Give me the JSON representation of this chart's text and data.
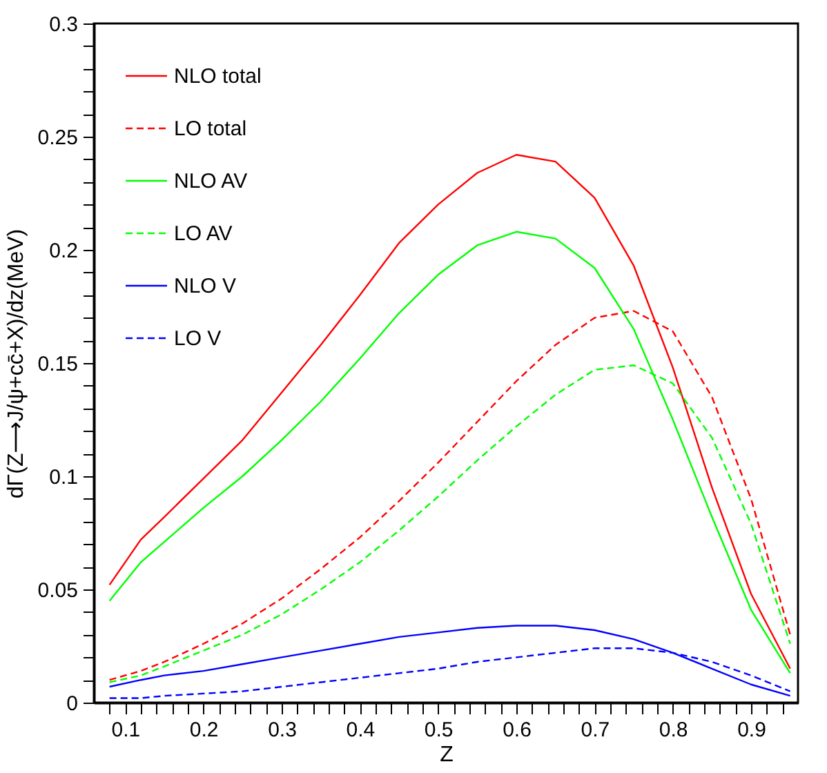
{
  "chart_data": {
    "type": "line",
    "xlabel": "Z",
    "ylabel": "dΓ(Z⟶J/ψ+cc̄+X)/dz(MeV)",
    "legend": "top left",
    "grid": false,
    "marker": "none",
    "x": [
      0.08,
      0.12,
      0.15,
      0.2,
      0.25,
      0.3,
      0.35,
      0.4,
      0.45,
      0.5,
      0.55,
      0.6,
      0.65,
      0.7,
      0.75,
      0.8,
      0.85,
      0.9,
      0.95
    ],
    "xlim": [
      0.06,
      0.96
    ],
    "ylim": [
      0,
      0.3
    ],
    "xticks": [
      {
        "value": 0.08,
        "label": null
      },
      {
        "value": 0.1,
        "label": "0.1"
      },
      {
        "value": 0.12,
        "label": null
      },
      {
        "value": 0.14,
        "label": null
      },
      {
        "value": 0.16,
        "label": null
      },
      {
        "value": 0.18,
        "label": null
      },
      {
        "value": 0.2,
        "label": "0.2"
      },
      {
        "value": 0.22,
        "label": null
      },
      {
        "value": 0.24,
        "label": null
      },
      {
        "value": 0.26,
        "label": null
      },
      {
        "value": 0.28,
        "label": null
      },
      {
        "value": 0.3,
        "label": "0.3"
      },
      {
        "value": 0.32,
        "label": null
      },
      {
        "value": 0.34,
        "label": null
      },
      {
        "value": 0.36,
        "label": null
      },
      {
        "value": 0.38,
        "label": null
      },
      {
        "value": 0.4,
        "label": "0.4"
      },
      {
        "value": 0.42,
        "label": null
      },
      {
        "value": 0.44,
        "label": null
      },
      {
        "value": 0.46,
        "label": null
      },
      {
        "value": 0.48,
        "label": null
      },
      {
        "value": 0.5,
        "label": "0.5"
      },
      {
        "value": 0.52,
        "label": null
      },
      {
        "value": 0.54,
        "label": null
      },
      {
        "value": 0.56,
        "label": null
      },
      {
        "value": 0.58,
        "label": null
      },
      {
        "value": 0.6,
        "label": "0.6"
      },
      {
        "value": 0.62,
        "label": null
      },
      {
        "value": 0.64,
        "label": null
      },
      {
        "value": 0.66,
        "label": null
      },
      {
        "value": 0.68,
        "label": null
      },
      {
        "value": 0.7,
        "label": "0.7"
      },
      {
        "value": 0.72,
        "label": null
      },
      {
        "value": 0.74,
        "label": null
      },
      {
        "value": 0.76,
        "label": null
      },
      {
        "value": 0.78,
        "label": null
      },
      {
        "value": 0.8,
        "label": "0.8"
      },
      {
        "value": 0.82,
        "label": null
      },
      {
        "value": 0.84,
        "label": null
      },
      {
        "value": 0.86,
        "label": null
      },
      {
        "value": 0.88,
        "label": null
      },
      {
        "value": 0.9,
        "label": "0.9"
      },
      {
        "value": 0.92,
        "label": null
      },
      {
        "value": 0.94,
        "label": null
      }
    ],
    "yticks": [
      0,
      {
        "value": 0.01,
        "label": null
      },
      {
        "value": 0.02,
        "label": null
      },
      {
        "value": 0.03,
        "label": null
      },
      {
        "value": 0.04,
        "label": null
      },
      0.05,
      {
        "value": 0.06,
        "label": null
      },
      {
        "value": 0.07,
        "label": null
      },
      {
        "value": 0.08,
        "label": null
      },
      {
        "value": 0.09,
        "label": null
      },
      0.1,
      {
        "value": 0.11,
        "label": null
      },
      {
        "value": 0.12,
        "label": null
      },
      {
        "value": 0.13,
        "label": null
      },
      {
        "value": 0.14,
        "label": null
      },
      0.15,
      {
        "value": 0.16,
        "label": null
      },
      {
        "value": 0.17,
        "label": null
      },
      {
        "value": 0.18,
        "label": null
      },
      {
        "value": 0.19,
        "label": null
      },
      0.2,
      {
        "value": 0.21,
        "label": null
      },
      {
        "value": 0.22,
        "label": null
      },
      {
        "value": 0.23,
        "label": null
      },
      {
        "value": 0.24,
        "label": null
      },
      0.25,
      {
        "value": 0.26,
        "label": null
      },
      {
        "value": 0.27,
        "label": null
      },
      {
        "value": 0.28,
        "label": null
      },
      {
        "value": 0.29,
        "label": null
      },
      0.3
    ],
    "series": [
      {
        "name": "NLO total",
        "color": "#ff0000",
        "line_style": "solid",
        "values": [
          0.052,
          0.072,
          0.082,
          0.099,
          0.116,
          0.137,
          0.158,
          0.18,
          0.203,
          0.22,
          0.234,
          0.242,
          0.239,
          0.223,
          0.193,
          0.148,
          0.095,
          0.048,
          0.015
        ]
      },
      {
        "name": "LO total",
        "color": "#ff0000",
        "line_style": "dashed",
        "values": [
          0.01,
          0.014,
          0.018,
          0.026,
          0.035,
          0.046,
          0.059,
          0.073,
          0.089,
          0.106,
          0.124,
          0.142,
          0.158,
          0.17,
          0.173,
          0.164,
          0.135,
          0.09,
          0.03
        ]
      },
      {
        "name": "NLO AV",
        "color": "#00ff00",
        "line_style": "solid",
        "values": [
          0.045,
          0.062,
          0.071,
          0.086,
          0.1,
          0.116,
          0.133,
          0.152,
          0.172,
          0.189,
          0.202,
          0.208,
          0.205,
          0.192,
          0.165,
          0.125,
          0.082,
          0.041,
          0.013
        ]
      },
      {
        "name": "LO AV",
        "color": "#00ff00",
        "line_style": "dashed",
        "values": [
          0.009,
          0.012,
          0.016,
          0.023,
          0.03,
          0.039,
          0.05,
          0.062,
          0.076,
          0.091,
          0.107,
          0.122,
          0.136,
          0.147,
          0.149,
          0.141,
          0.117,
          0.079,
          0.026
        ]
      },
      {
        "name": "NLO V",
        "color": "#0000ff",
        "line_style": "solid",
        "values": [
          0.007,
          0.01,
          0.012,
          0.014,
          0.017,
          0.02,
          0.023,
          0.026,
          0.029,
          0.031,
          0.033,
          0.034,
          0.034,
          0.032,
          0.028,
          0.022,
          0.015,
          0.008,
          0.003
        ]
      },
      {
        "name": "LO V",
        "color": "#0000ff",
        "line_style": "dashed",
        "values": [
          0.002,
          0.002,
          0.003,
          0.004,
          0.005,
          0.007,
          0.009,
          0.011,
          0.013,
          0.015,
          0.018,
          0.02,
          0.022,
          0.024,
          0.024,
          0.022,
          0.018,
          0.012,
          0.005
        ]
      }
    ]
  }
}
